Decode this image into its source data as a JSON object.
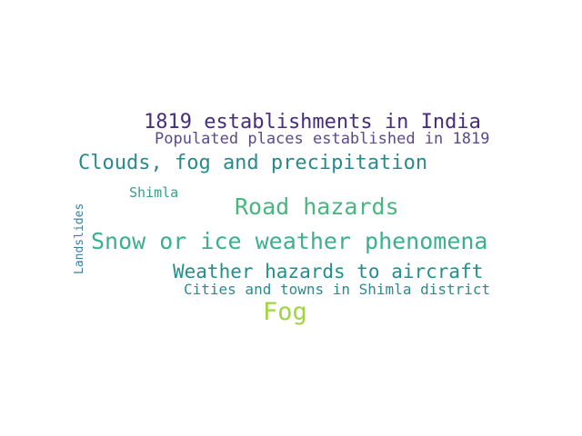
{
  "words": [
    {
      "text": "1819 establishments in India",
      "color": "#472d7b"
    },
    {
      "text": "Populated places established in 1819",
      "color": "#5b4a8b"
    },
    {
      "text": "Clouds, fog and precipitation",
      "color": "#2a8a8c"
    },
    {
      "text": "Shimla",
      "color": "#35a08a"
    },
    {
      "text": "Road hazards",
      "color": "#4ab67f"
    },
    {
      "text": "Snow or ice weather phenomena",
      "color": "#3cb08a"
    },
    {
      "text": "Weather hazards to aircraft",
      "color": "#21908d"
    },
    {
      "text": "Cities and towns in Shimla district",
      "color": "#2c8a8e"
    },
    {
      "text": "Fog",
      "color": "#a0d53e"
    },
    {
      "text": "Landslides",
      "color": "#3e7ea0"
    }
  ]
}
